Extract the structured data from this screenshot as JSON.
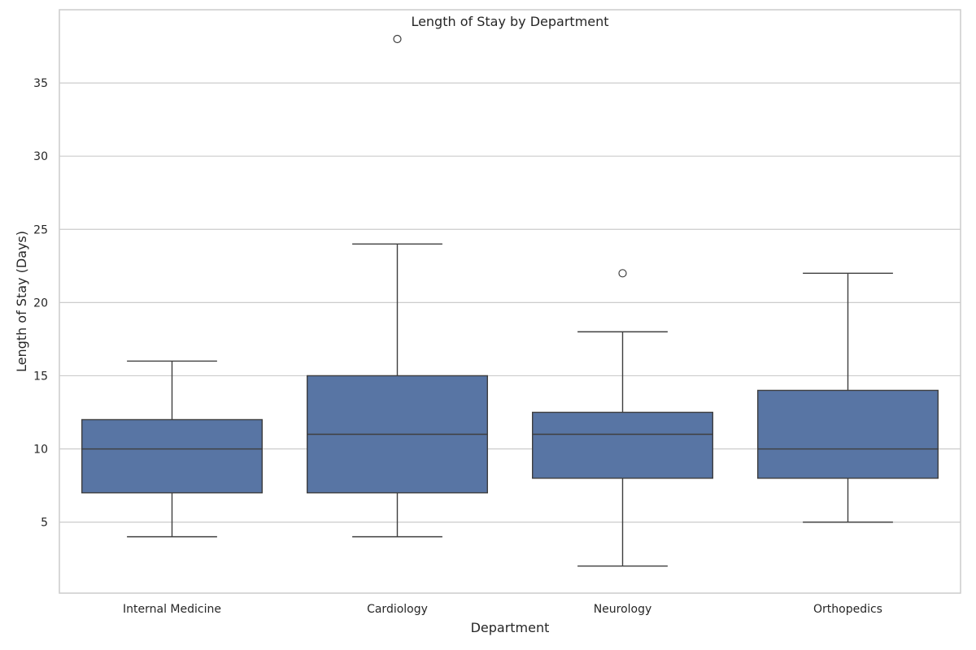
{
  "chart_data": {
    "type": "box",
    "title": "Length of Stay by Department",
    "xlabel": "Department",
    "ylabel": "Length of Stay (Days)",
    "ylim": [
      0.15,
      40.0
    ],
    "yticks": [
      5,
      10,
      15,
      20,
      25,
      30,
      35
    ],
    "grid": true,
    "categories": [
      "Internal Medicine",
      "Cardiology",
      "Neurology",
      "Orthopedics"
    ],
    "boxes": [
      {
        "name": "Internal Medicine",
        "whisker_low": 4,
        "q1": 7,
        "median": 10,
        "q3": 12,
        "whisker_high": 16,
        "outliers": []
      },
      {
        "name": "Cardiology",
        "whisker_low": 4,
        "q1": 7,
        "median": 11,
        "q3": 15,
        "whisker_high": 24,
        "outliers": [
          38
        ]
      },
      {
        "name": "Neurology",
        "whisker_low": 2,
        "q1": 8,
        "median": 11,
        "q3": 12.5,
        "whisker_high": 18,
        "outliers": [
          22
        ]
      },
      {
        "name": "Orthopedics",
        "whisker_low": 5,
        "q1": 8,
        "median": 10,
        "q3": 14,
        "whisker_high": 22,
        "outliers": []
      }
    ],
    "colors": {
      "box": "#5875a4",
      "line": "#3f3f3f",
      "grid": "#cccccc"
    }
  }
}
